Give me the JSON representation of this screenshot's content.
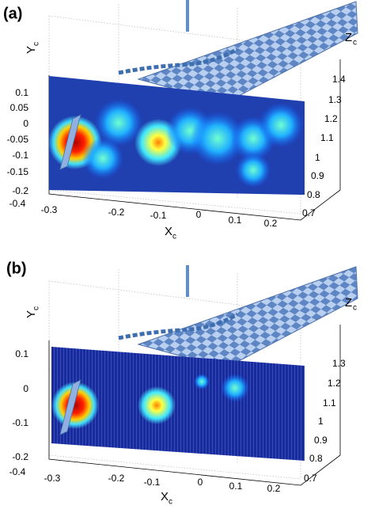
{
  "panels": [
    {
      "label": "(a)",
      "y_label": "Y",
      "y_label_sub": "c",
      "x_label": "X",
      "x_label_sub": "c",
      "z_label": "Z",
      "z_label_sub": "c",
      "y_ticks": [
        "0.1",
        "0.05",
        "0",
        "-0.05",
        "-0.1",
        "-0.15",
        "-0.2"
      ],
      "x_ticks": [
        "-0.4",
        "-0.3",
        "-0.2",
        "-0.1",
        "0",
        "0.1",
        "0.2"
      ],
      "z_ticks": [
        "1.4",
        "1.3",
        "1.2",
        "1.1",
        "1",
        "0.9",
        "0.8",
        "0.7"
      ]
    },
    {
      "label": "(b)",
      "y_label": "Y",
      "y_label_sub": "c",
      "x_label": "X",
      "x_label_sub": "c",
      "z_label": "Z",
      "z_label_sub": "c",
      "y_ticks": [
        "0.1",
        "0",
        "-0.1",
        "-0.2"
      ],
      "x_ticks": [
        "-0.4",
        "-0.3",
        "-0.2",
        "-0.1",
        "0",
        "0.1",
        "0.2"
      ],
      "z_ticks": [
        "1.3",
        "1.2",
        "1.1",
        "1",
        "0.9",
        "0.8",
        "0.7"
      ]
    }
  ]
}
